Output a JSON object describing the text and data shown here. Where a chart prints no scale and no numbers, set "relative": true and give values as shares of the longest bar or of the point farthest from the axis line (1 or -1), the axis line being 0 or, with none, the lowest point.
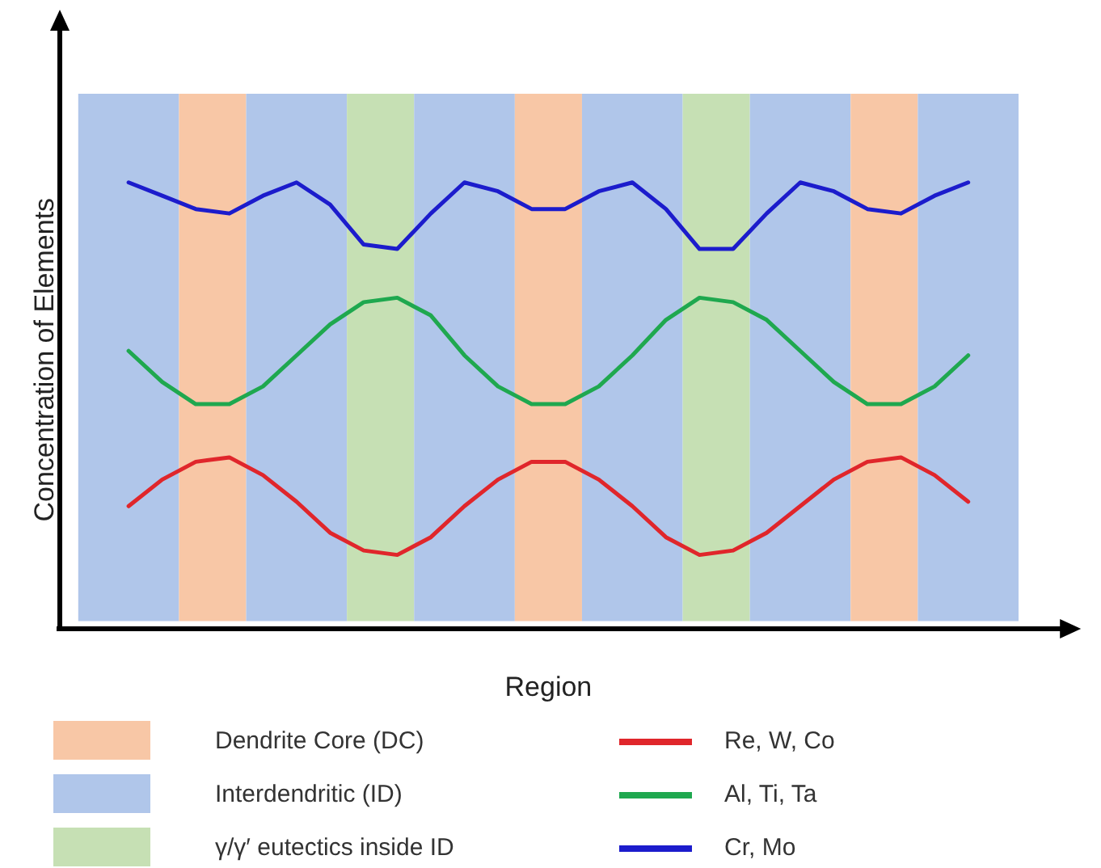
{
  "chart_data": {
    "type": "line",
    "relative": true,
    "xlabel": "Region",
    "ylabel": "Concentration of Elements",
    "categories": [
      null,
      null,
      null,
      null,
      null,
      null,
      null,
      null,
      null,
      null,
      null,
      null,
      null,
      null,
      null,
      null,
      null,
      null,
      null,
      null,
      null,
      null,
      null,
      null,
      null,
      null,
      null,
      null
    ],
    "grid": false,
    "legend": "bottom",
    "marker": "none",
    "line_style": "solid",
    "annotations": [
      "Dendrite Core (DC)",
      "Interdendritic (ID)",
      "γ/γ′ eutectics inside ID"
    ],
    "series": [
      {
        "name": "Re, W, Co",
        "color": "#e0262b",
        "values": [
          null,
          0.27,
          0.33,
          0.37,
          0.38,
          0.34,
          0.28,
          0.21,
          0.17,
          0.16,
          0.2,
          0.27,
          0.33,
          0.37,
          0.37,
          0.33,
          0.27,
          0.2,
          0.16,
          0.17,
          0.21,
          0.27,
          0.33,
          0.37,
          0.38,
          0.34,
          0.28,
          null
        ]
      },
      {
        "name": "Al, Ti, Ta",
        "color": "#1fa84f",
        "values": [
          null,
          0.62,
          0.55,
          0.5,
          0.5,
          0.54,
          0.61,
          0.68,
          0.73,
          0.74,
          0.7,
          0.61,
          0.54,
          0.5,
          0.5,
          0.54,
          0.61,
          0.69,
          0.74,
          0.73,
          0.69,
          0.62,
          0.55,
          0.5,
          0.5,
          0.54,
          0.61,
          null
        ]
      },
      {
        "name": "Cr, Mo",
        "color": "#1c1ccc",
        "values": [
          null,
          1.0,
          0.97,
          0.94,
          0.93,
          0.97,
          1.0,
          0.95,
          0.86,
          0.85,
          0.93,
          1.0,
          0.98,
          0.94,
          0.94,
          0.98,
          1.0,
          0.94,
          0.85,
          0.85,
          0.93,
          1.0,
          0.98,
          0.94,
          0.93,
          0.97,
          1.0,
          null
        ]
      }
    ]
  }
}
